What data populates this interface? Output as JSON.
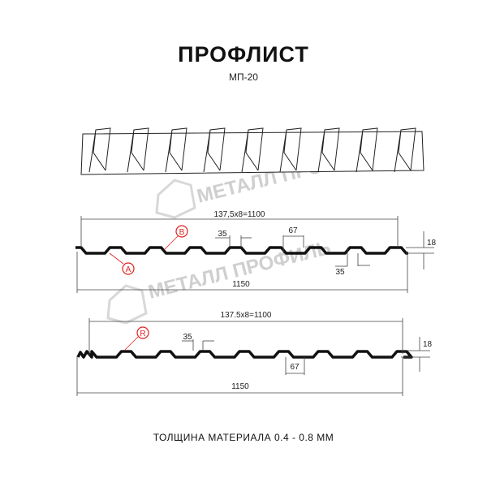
{
  "title": "ПРОФЛИСТ",
  "subtitle": "МП-20",
  "watermark": "МЕТАЛЛ ПРОФИЛЬ",
  "profile_a": {
    "pitch_label": "137,5x8=1100",
    "total_width": "1150",
    "height": "18",
    "top_width": "35",
    "bottom_width_label": "35",
    "rib_width": "67",
    "markers": [
      "A",
      "B"
    ]
  },
  "profile_r": {
    "pitch_label": "137.5x8=1100",
    "total_width": "1150",
    "height": "18",
    "top_width": "35",
    "rib_width": "67",
    "markers": [
      "R"
    ]
  },
  "footer": "ТОЛЩИНА МАТЕРИАЛА 0.4 - 0.8 ММ",
  "colors": {
    "marker": "#e02020",
    "profile": "#111111",
    "watermark": "#cfcfcf"
  }
}
